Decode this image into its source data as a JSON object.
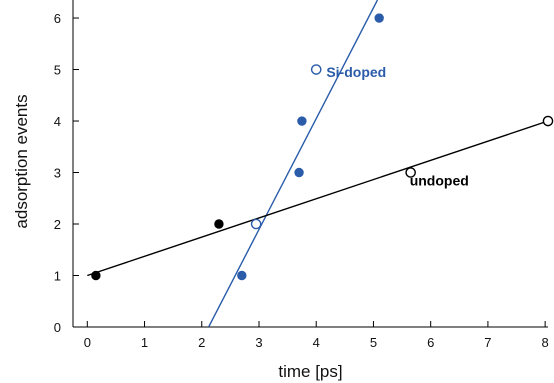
{
  "chart_data": {
    "type": "scatter",
    "title": "",
    "xlabel": "time [ps]",
    "ylabel": "adsorption events",
    "xlim": [
      -0.25,
      8.05
    ],
    "ylim": [
      0,
      6.35
    ],
    "x_ticks": [
      0,
      1,
      2,
      3,
      4,
      5,
      6,
      7,
      8
    ],
    "y_ticks": [
      0,
      1,
      2,
      3,
      4,
      5,
      6
    ],
    "grid": false,
    "colors": {
      "si_doped": "#2a5caa",
      "undoped": "#000000"
    },
    "series": [
      {
        "color": "#2a5caa",
        "marker": "filled-circle",
        "points": [
          [
            2.7,
            1
          ],
          [
            3.7,
            3
          ],
          [
            3.75,
            4
          ],
          [
            5.1,
            6
          ]
        ]
      },
      {
        "color": "#2a5caa",
        "marker": "open-circle",
        "points": [
          [
            2.95,
            2
          ],
          [
            4.0,
            5
          ]
        ]
      },
      {
        "color": "#000000",
        "marker": "filled-circle",
        "points": [
          [
            0.15,
            1
          ],
          [
            2.3,
            2
          ]
        ]
      },
      {
        "color": "#000000",
        "marker": "open-circle",
        "points": [
          [
            5.65,
            3
          ],
          [
            8.05,
            4
          ]
        ]
      }
    ],
    "fit_lines": [
      {
        "color": "#2a5caa",
        "from": [
          2.12,
          0
        ],
        "to": [
          5.07,
          6.35
        ]
      },
      {
        "color": "#000000",
        "from": [
          0.0,
          1.0
        ],
        "to": [
          8.05,
          4.0
        ]
      }
    ],
    "annotations": [
      {
        "text": "Si-doped",
        "x": 4.7,
        "y": 4.85,
        "color": "#2a5caa"
      },
      {
        "text": "undoped",
        "x": 6.15,
        "y": 2.75,
        "color": "#000000"
      }
    ]
  }
}
